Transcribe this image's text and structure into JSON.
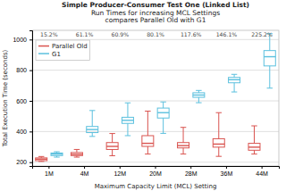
{
  "chart_data": {
    "type": "box",
    "title": [
      "Simple Producer-Consumer Test One (Linked List)",
      "Run Times for increasing MCL Settings",
      "compares Parallel Old with G1"
    ],
    "x_label": "Maximum Capacity Limit (MCL) Setting",
    "y_label": "Total Execution Time (seconds)",
    "categories": [
      "1M",
      "4M",
      "12M",
      "20M",
      "28M",
      "36M",
      "44M"
    ],
    "annotations": [
      "15.2%",
      "61.1%",
      "60.9%",
      "80.1%",
      "117.6%",
      "146.1%",
      "225.2%"
    ],
    "series": [
      {
        "name": "Parallel Old",
        "color": "#d9534f",
        "values": [
          {
            "whislo": 205,
            "q1": 210,
            "med": 220,
            "q3": 228,
            "whishi": 237
          },
          {
            "whislo": 233,
            "q1": 243,
            "med": 252,
            "q3": 263,
            "whishi": 283
          },
          {
            "whislo": 242,
            "q1": 283,
            "med": 303,
            "q3": 328,
            "whishi": 387
          },
          {
            "whislo": 253,
            "q1": 303,
            "med": 323,
            "q3": 373,
            "whishi": 533
          },
          {
            "whislo": 253,
            "q1": 293,
            "med": 308,
            "q3": 328,
            "whishi": 427
          },
          {
            "whislo": 238,
            "q1": 298,
            "med": 318,
            "q3": 353,
            "whishi": 523
          },
          {
            "whislo": 253,
            "q1": 278,
            "med": 298,
            "q3": 323,
            "whishi": 437
          }
        ]
      },
      {
        "name": "G1",
        "color": "#5bc0de",
        "values": [
          {
            "whislo": 233,
            "q1": 243,
            "med": 253,
            "q3": 260,
            "whishi": 268
          },
          {
            "whislo": 368,
            "q1": 393,
            "med": 413,
            "q3": 433,
            "whishi": 537
          },
          {
            "whislo": 373,
            "q1": 453,
            "med": 473,
            "q3": 493,
            "whishi": 587
          },
          {
            "whislo": 388,
            "q1": 488,
            "med": 523,
            "q3": 553,
            "whishi": 593
          },
          {
            "whislo": 588,
            "q1": 623,
            "med": 638,
            "q3": 653,
            "whishi": 668
          },
          {
            "whislo": 658,
            "q1": 718,
            "med": 738,
            "q3": 753,
            "whishi": 773
          },
          {
            "whislo": 683,
            "q1": 828,
            "med": 888,
            "q3": 928,
            "whishi": 1038
          }
        ]
      }
    ],
    "ylim": [
      175,
      1060
    ],
    "yticks": [
      200,
      400,
      600,
      800,
      1000
    ],
    "grid": true,
    "legend": "upper left"
  }
}
